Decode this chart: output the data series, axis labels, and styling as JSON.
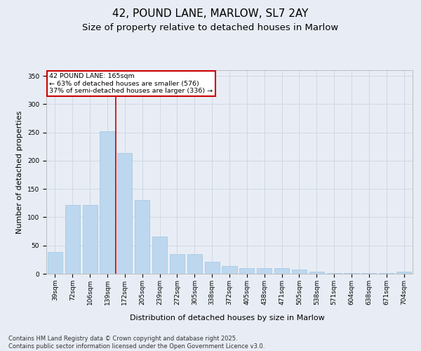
{
  "title": "42, POUND LANE, MARLOW, SL7 2AY",
  "subtitle": "Size of property relative to detached houses in Marlow",
  "xlabel": "Distribution of detached houses by size in Marlow",
  "ylabel": "Number of detached properties",
  "categories": [
    "39sqm",
    "72sqm",
    "106sqm",
    "139sqm",
    "172sqm",
    "205sqm",
    "239sqm",
    "272sqm",
    "305sqm",
    "338sqm",
    "372sqm",
    "405sqm",
    "438sqm",
    "471sqm",
    "505sqm",
    "538sqm",
    "571sqm",
    "604sqm",
    "638sqm",
    "671sqm",
    "704sqm"
  ],
  "values": [
    38,
    122,
    122,
    252,
    213,
    130,
    66,
    35,
    35,
    21,
    14,
    10,
    10,
    10,
    7,
    4,
    1,
    1,
    1,
    1,
    4
  ],
  "bar_color": "#bdd7ee",
  "bar_edge_color": "#9dc6e0",
  "grid_color": "#d0d8e4",
  "background_color": "#e8edf5",
  "annotation_box_text": "42 POUND LANE: 165sqm\n← 63% of detached houses are smaller (576)\n37% of semi-detached houses are larger (336) →",
  "annotation_box_color": "#cc0000",
  "vline_index": 3.5,
  "vline_color": "#cc0000",
  "ylim": [
    0,
    360
  ],
  "yticks": [
    0,
    50,
    100,
    150,
    200,
    250,
    300,
    350
  ],
  "footer": "Contains HM Land Registry data © Crown copyright and database right 2025.\nContains public sector information licensed under the Open Government Licence v3.0.",
  "title_fontsize": 11,
  "subtitle_fontsize": 9.5,
  "xlabel_fontsize": 8,
  "ylabel_fontsize": 8,
  "tick_fontsize": 6.5,
  "footer_fontsize": 6
}
